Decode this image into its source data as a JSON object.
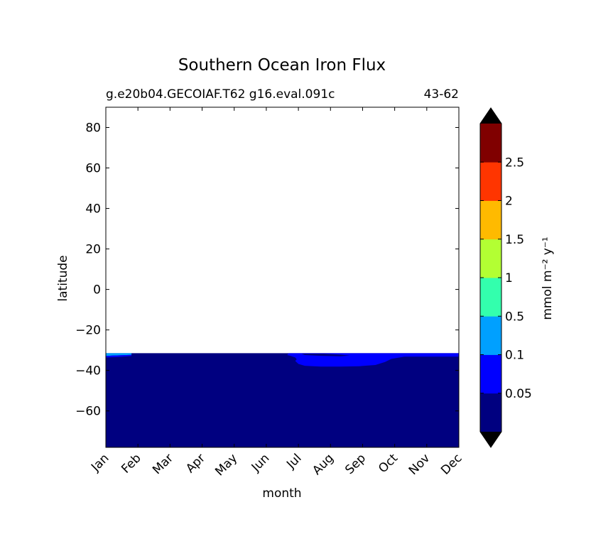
{
  "chart_data": {
    "type": "heatmap",
    "title": "Southern Ocean Iron Flux",
    "subtitle_left": "g.e20b04.GECOIAF.T62 g16.eval.091c",
    "subtitle_right": "43-62",
    "xlabel": "month",
    "ylabel": "latitude",
    "categories": [
      "Jan",
      "Feb",
      "Mar",
      "Apr",
      "May",
      "Jun",
      "Jul",
      "Aug",
      "Sep",
      "Oct",
      "Nov",
      "Dec"
    ],
    "yticks": [
      80,
      60,
      40,
      20,
      0,
      -20,
      -40,
      -60
    ],
    "ytick_labels": [
      "80",
      "60",
      "40",
      "20",
      "0",
      "−20",
      "−40",
      "−60"
    ],
    "ylim": [
      -78,
      90
    ],
    "data_region_lat": [
      -78,
      -31.5
    ],
    "regions": [
      {
        "name": "background",
        "level": 0,
        "color": "#000080",
        "polygon": [
          [
            0,
            -31.5
          ],
          [
            11,
            -31.5
          ],
          [
            11,
            -78
          ],
          [
            0,
            -78
          ]
        ]
      },
      {
        "name": "upper-band",
        "level": 1,
        "color": "#0000ff",
        "polygon": [
          [
            5.7,
            -31.5
          ],
          [
            11,
            -31.5
          ],
          [
            11,
            -33.2
          ],
          [
            9.3,
            -33.2
          ],
          [
            8.9,
            -34.3
          ],
          [
            8.7,
            -35.8
          ],
          [
            8.4,
            -37.3
          ],
          [
            7.9,
            -37.9
          ],
          [
            7.3,
            -38.1
          ],
          [
            6.7,
            -38.1
          ],
          [
            6.2,
            -37.7
          ],
          [
            6.0,
            -36.8
          ],
          [
            5.9,
            -35.3
          ],
          [
            5.95,
            -34.5
          ],
          [
            5.9,
            -33.6
          ],
          [
            5.75,
            -32.8
          ],
          [
            5.65,
            -32.4
          ]
        ]
      },
      {
        "name": "inner-dark",
        "level": 0,
        "color": "#000080",
        "polygon": [
          [
            6.1,
            -31.7
          ],
          [
            6.8,
            -31.7
          ],
          [
            7.3,
            -32.2
          ],
          [
            7.6,
            -32.7
          ],
          [
            7.3,
            -33.0
          ],
          [
            6.7,
            -32.8
          ],
          [
            6.2,
            -32.4
          ]
        ]
      },
      {
        "name": "jan-light",
        "level": 2,
        "color": "#00a0ff",
        "polygon": [
          [
            0,
            -31.5
          ],
          [
            0.8,
            -31.5
          ],
          [
            0.8,
            -32.3
          ],
          [
            0.5,
            -32.5
          ],
          [
            0.2,
            -32.7
          ],
          [
            0,
            -32.9
          ]
        ]
      },
      {
        "name": "jan-blue",
        "level": 1,
        "color": "#0000ff",
        "polygon": [
          [
            0,
            -32.9
          ],
          [
            0.2,
            -32.7
          ],
          [
            0.5,
            -32.5
          ],
          [
            0.8,
            -32.3
          ],
          [
            0.8,
            -32.9
          ],
          [
            0.4,
            -33.3
          ],
          [
            0,
            -33.6
          ]
        ]
      }
    ],
    "colorbar": {
      "label": "mmol m⁻² y⁻¹",
      "boundaries": [
        0,
        0.05,
        0.1,
        0.5,
        1,
        1.5,
        2,
        2.5,
        3
      ],
      "tick_labels": [
        "0.05",
        "0.1",
        "0.5",
        "1",
        "1.5",
        "2",
        "2.5"
      ],
      "colors": [
        "#000080",
        "#0000ff",
        "#00a0ff",
        "#33ffad",
        "#b3ff33",
        "#ffba00",
        "#ff3500",
        "#800000"
      ],
      "extend_low_color": "#000000",
      "extend_high_color": "#000000"
    }
  }
}
